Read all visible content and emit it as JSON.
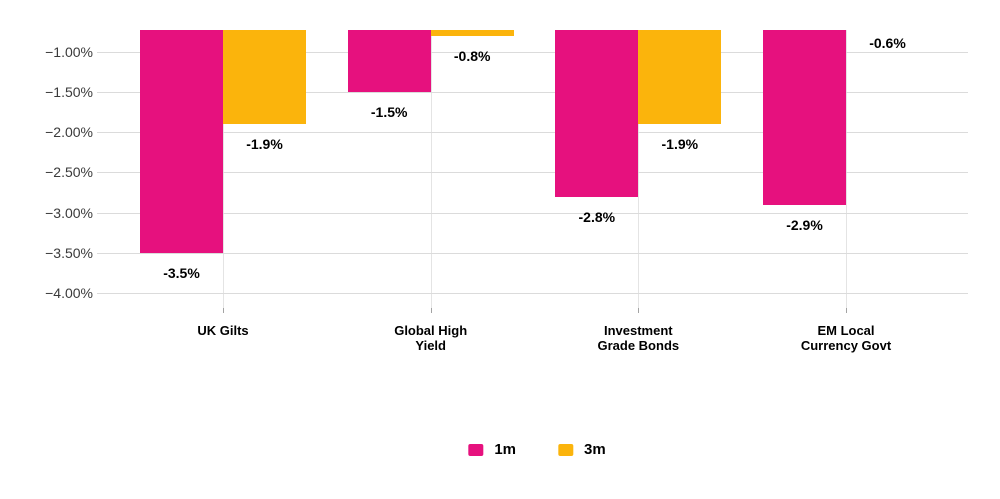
{
  "chart_data": {
    "type": "bar",
    "title": "",
    "categories": [
      "UK Gilts",
      "Global High Yield",
      "Investment Grade Bonds",
      "EM Local Currency Govt"
    ],
    "category_labels_wrapped": [
      "UK Gilts",
      "Global High\nYield",
      "Investment\nGrade Bonds",
      "EM Local\nCurrency Govt"
    ],
    "series": [
      {
        "name": "1m",
        "color": "#E6117E",
        "values": [
          -3.5,
          -1.5,
          -2.8,
          -2.9
        ],
        "data_labels": [
          "-3.5%",
          "-1.5%",
          "-2.8%",
          "-2.9%"
        ]
      },
      {
        "name": "3m",
        "color": "#FBB40C",
        "values": [
          -1.9,
          -0.8,
          -1.9,
          -0.6
        ],
        "data_labels": [
          "-1.9%",
          "-0.8%",
          "-1.9%",
          "-0.6%"
        ]
      }
    ],
    "y_axis": {
      "format": "percent",
      "tick_labels": [
        "−1.00%",
        "−1.50%",
        "−2.00%",
        "−2.50%",
        "−3.00%",
        "−3.50%",
        "−4.00%"
      ],
      "tick_values": [
        -1.0,
        -1.5,
        -2.0,
        -2.5,
        -3.0,
        -3.5,
        -4.0
      ],
      "visible_range_top": -0.73,
      "visible_range_bottom": -4.25
    },
    "xlabel": "",
    "ylabel": "",
    "grid": {
      "horizontal": true,
      "vertical_category_ticks": true
    },
    "legend": {
      "position": "bottom-center",
      "items": [
        {
          "label": "1m",
          "color": "#E6117E"
        },
        {
          "label": "3m",
          "color": "#FBB40C"
        }
      ]
    }
  },
  "colors": {
    "series_1m": "#E6117E",
    "series_3m": "#FBB40C",
    "gridline": "#DBDBDB",
    "axis_text": "#3A3A3A",
    "label_text": "#000000",
    "background": "#FFFFFF"
  }
}
